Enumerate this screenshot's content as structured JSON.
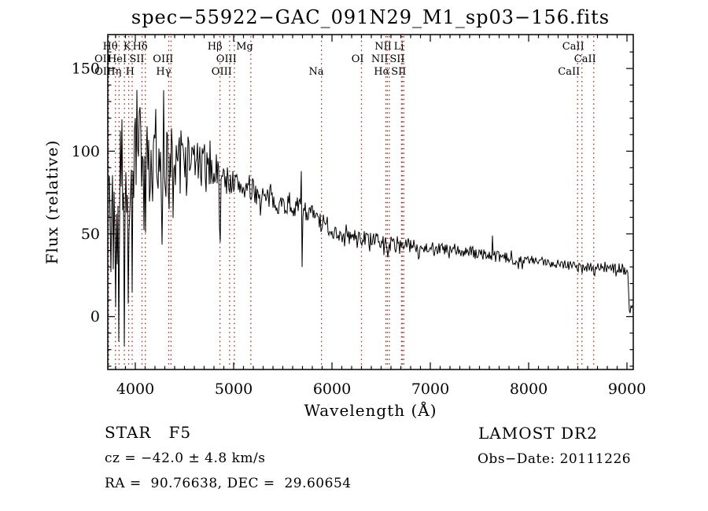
{
  "chart_data": {
    "type": "line",
    "title": "spec−55922−GAC_091N29_M1_sp03−156.fits",
    "xlabel": "Wavelength (Å)",
    "ylabel": "Flux (relative)",
    "xlim": [
      3720,
      9064
    ],
    "ylim": [
      -32,
      170.5
    ],
    "xticks": [
      4000,
      5000,
      6000,
      7000,
      8000,
      9000
    ],
    "yticks": [
      0,
      50,
      100,
      150
    ],
    "x_minor_step": 100,
    "y_minor_step": 10,
    "grid": false,
    "line_color": "#000000",
    "marker_line_color": "#992820",
    "line_markers": [
      {
        "label": "Hθ",
        "wavelength": 3798,
        "row": 0
      },
      {
        "label": "K",
        "wavelength": 3933,
        "row": 0
      },
      {
        "label": "Hδ",
        "wavelength": 4102,
        "row": 0
      },
      {
        "label": "Hβ",
        "wavelength": 4861,
        "row": 0
      },
      {
        "label": "Mg",
        "wavelength": 5175,
        "row": 0
      },
      {
        "label": "NII",
        "wavelength": 6583,
        "row": 0
      },
      {
        "label": "Li",
        "wavelength": 6707,
        "row": 0
      },
      {
        "label": "CaII",
        "wavelength": 8542,
        "row": 0
      },
      {
        "label": "OII",
        "wavelength": 3727,
        "row": 1
      },
      {
        "label": "HeI",
        "wavelength": 3889,
        "row": 1
      },
      {
        "label": "SII",
        "wavelength": 4068,
        "row": 1
      },
      {
        "label": "OIII",
        "wavelength": 4363,
        "row": 1
      },
      {
        "label": "OIII",
        "wavelength": 5007,
        "row": 1
      },
      {
        "label": "OI",
        "wavelength": 6300,
        "row": 1
      },
      {
        "label": "NII",
        "wavelength": 6548,
        "row": 1
      },
      {
        "label": "SII",
        "wavelength": 6716,
        "row": 1
      },
      {
        "label": "CaII",
        "wavelength": 8662,
        "row": 1
      },
      {
        "label": "OII",
        "wavelength": 3729,
        "row": 2
      },
      {
        "label": "Hη",
        "wavelength": 3835,
        "row": 2
      },
      {
        "label": "H",
        "wavelength": 3968,
        "row": 2
      },
      {
        "label": "Hγ",
        "wavelength": 4340,
        "row": 2
      },
      {
        "label": "OIII",
        "wavelength": 4959,
        "row": 2
      },
      {
        "label": "Na",
        "wavelength": 5893,
        "row": 2
      },
      {
        "label": "Hα",
        "wavelength": 6563,
        "row": 2
      },
      {
        "label": "SII",
        "wavelength": 6731,
        "row": 2
      },
      {
        "label": "CaII",
        "wavelength": 8498,
        "row": 2
      }
    ],
    "spectrum": {
      "seed": 7,
      "continuum": [
        [
          3720,
          85
        ],
        [
          3760,
          95
        ],
        [
          3800,
          98
        ],
        [
          3850,
          96
        ],
        [
          3900,
          94
        ],
        [
          3950,
          97
        ],
        [
          4000,
          103
        ],
        [
          4050,
          110
        ],
        [
          4100,
          104
        ],
        [
          4150,
          100
        ],
        [
          4200,
          102
        ],
        [
          4250,
          103
        ],
        [
          4300,
          99
        ],
        [
          4350,
          100
        ],
        [
          4400,
          103
        ],
        [
          4450,
          100
        ],
        [
          4500,
          97
        ],
        [
          4600,
          95
        ],
        [
          4700,
          91
        ],
        [
          4800,
          88
        ],
        [
          4900,
          84
        ],
        [
          5000,
          81
        ],
        [
          5100,
          78
        ],
        [
          5200,
          76
        ],
        [
          5300,
          73
        ],
        [
          5400,
          70
        ],
        [
          5500,
          68
        ],
        [
          5600,
          67
        ],
        [
          5700,
          65
        ],
        [
          5800,
          62
        ],
        [
          5900,
          57
        ],
        [
          6000,
          52
        ],
        [
          6100,
          49
        ],
        [
          6200,
          48
        ],
        [
          6300,
          48
        ],
        [
          6400,
          46
        ],
        [
          6500,
          45
        ],
        [
          6600,
          44
        ],
        [
          6700,
          44
        ],
        [
          6800,
          43
        ],
        [
          6900,
          42
        ],
        [
          7000,
          42
        ],
        [
          7100,
          41
        ],
        [
          7200,
          40
        ],
        [
          7300,
          39
        ],
        [
          7400,
          39
        ],
        [
          7500,
          38
        ],
        [
          7600,
          37
        ],
        [
          7700,
          36
        ],
        [
          7800,
          35
        ],
        [
          7900,
          34
        ],
        [
          8000,
          34
        ],
        [
          8100,
          33
        ],
        [
          8200,
          33
        ],
        [
          8300,
          32
        ],
        [
          8400,
          32
        ],
        [
          8500,
          31
        ],
        [
          8600,
          30
        ],
        [
          8700,
          30
        ],
        [
          8800,
          29
        ],
        [
          8900,
          29
        ],
        [
          9000,
          28
        ],
        [
          9012,
          26
        ],
        [
          9022,
          3
        ],
        [
          9040,
          4
        ],
        [
          9064,
          5
        ]
      ],
      "noise_amplitude": [
        [
          3720,
          52
        ],
        [
          3800,
          50
        ],
        [
          3900,
          46
        ],
        [
          3950,
          40
        ],
        [
          4050,
          33
        ],
        [
          4150,
          28
        ],
        [
          4300,
          22
        ],
        [
          4450,
          17
        ],
        [
          4600,
          13
        ],
        [
          4800,
          10
        ],
        [
          5000,
          8
        ],
        [
          5300,
          7
        ],
        [
          5700,
          6
        ],
        [
          6000,
          5
        ],
        [
          6500,
          4.5
        ],
        [
          7000,
          4
        ],
        [
          7600,
          3.5
        ],
        [
          8200,
          3
        ],
        [
          9000,
          3
        ],
        [
          9064,
          3
        ]
      ],
      "absorption_lines": [
        {
          "wavelength": 3727,
          "depth": 55,
          "width": 6
        },
        {
          "wavelength": 3750,
          "depth": 80,
          "width": 6
        },
        {
          "wavelength": 3772,
          "depth": 70,
          "width": 5
        },
        {
          "wavelength": 3798,
          "depth": 75,
          "width": 6
        },
        {
          "wavelength": 3820,
          "depth": 60,
          "width": 5
        },
        {
          "wavelength": 3835,
          "depth": 90,
          "width": 6
        },
        {
          "wavelength": 3860,
          "depth": 55,
          "width": 5
        },
        {
          "wavelength": 3889,
          "depth": 78,
          "width": 6
        },
        {
          "wavelength": 3912,
          "depth": 50,
          "width": 5
        },
        {
          "wavelength": 3933,
          "depth": 95,
          "width": 7
        },
        {
          "wavelength": 3968,
          "depth": 88,
          "width": 7
        },
        {
          "wavelength": 4005,
          "depth": 45,
          "width": 5
        },
        {
          "wavelength": 4026,
          "depth": 50,
          "width": 5
        },
        {
          "wavelength": 4068,
          "depth": 48,
          "width": 5
        },
        {
          "wavelength": 4102,
          "depth": 72,
          "width": 7
        },
        {
          "wavelength": 4144,
          "depth": 38,
          "width": 5
        },
        {
          "wavelength": 4180,
          "depth": 30,
          "width": 5
        },
        {
          "wavelength": 4226,
          "depth": 42,
          "width": 5
        },
        {
          "wavelength": 4272,
          "depth": 32,
          "width": 5
        },
        {
          "wavelength": 4308,
          "depth": 40,
          "width": 5
        },
        {
          "wavelength": 4340,
          "depth": 52,
          "width": 7
        },
        {
          "wavelength": 4383,
          "depth": 38,
          "width": 6
        },
        {
          "wavelength": 4405,
          "depth": 28,
          "width": 5
        },
        {
          "wavelength": 4455,
          "depth": 24,
          "width": 5
        },
        {
          "wavelength": 4520,
          "depth": 18,
          "width": 5
        },
        {
          "wavelength": 4668,
          "depth": 15,
          "width": 5
        },
        {
          "wavelength": 4861,
          "depth": 38,
          "width": 8
        },
        {
          "wavelength": 4920,
          "depth": 10,
          "width": 5
        },
        {
          "wavelength": 5167,
          "depth": 9,
          "width": 7
        },
        {
          "wavelength": 5270,
          "depth": 8,
          "width": 6
        },
        {
          "wavelength": 5332,
          "depth": 7,
          "width": 5
        },
        {
          "wavelength": 5893,
          "depth": 9,
          "width": 7
        },
        {
          "wavelength": 6122,
          "depth": 6,
          "width": 6
        },
        {
          "wavelength": 6563,
          "depth": 8,
          "width": 7
        },
        {
          "wavelength": 6880,
          "depth": 5,
          "width": 9
        },
        {
          "wavelength": 7190,
          "depth": 4,
          "width": 7
        },
        {
          "wavelength": 8498,
          "depth": 5,
          "width": 6
        },
        {
          "wavelength": 8542,
          "depth": 6,
          "width": 6
        },
        {
          "wavelength": 8662,
          "depth": 5,
          "width": 6
        }
      ],
      "spikes": [
        {
          "wavelength": 5684,
          "flux": 88
        },
        {
          "wavelength": 5692,
          "flux": 30
        },
        {
          "wavelength": 7245,
          "flux": 44
        },
        {
          "wavelength": 7630,
          "flux": 49
        },
        {
          "wavelength": 7824,
          "flux": 40
        }
      ]
    }
  },
  "footer": {
    "classification": "STAR   F5",
    "survey": "LAMOST DR2",
    "cz": "cz = −42.0 ± 4.8 km/s",
    "obs_date": "Obs−Date: 20111226",
    "ra_dec": "RA =  90.76638, DEC =  29.60654"
  }
}
